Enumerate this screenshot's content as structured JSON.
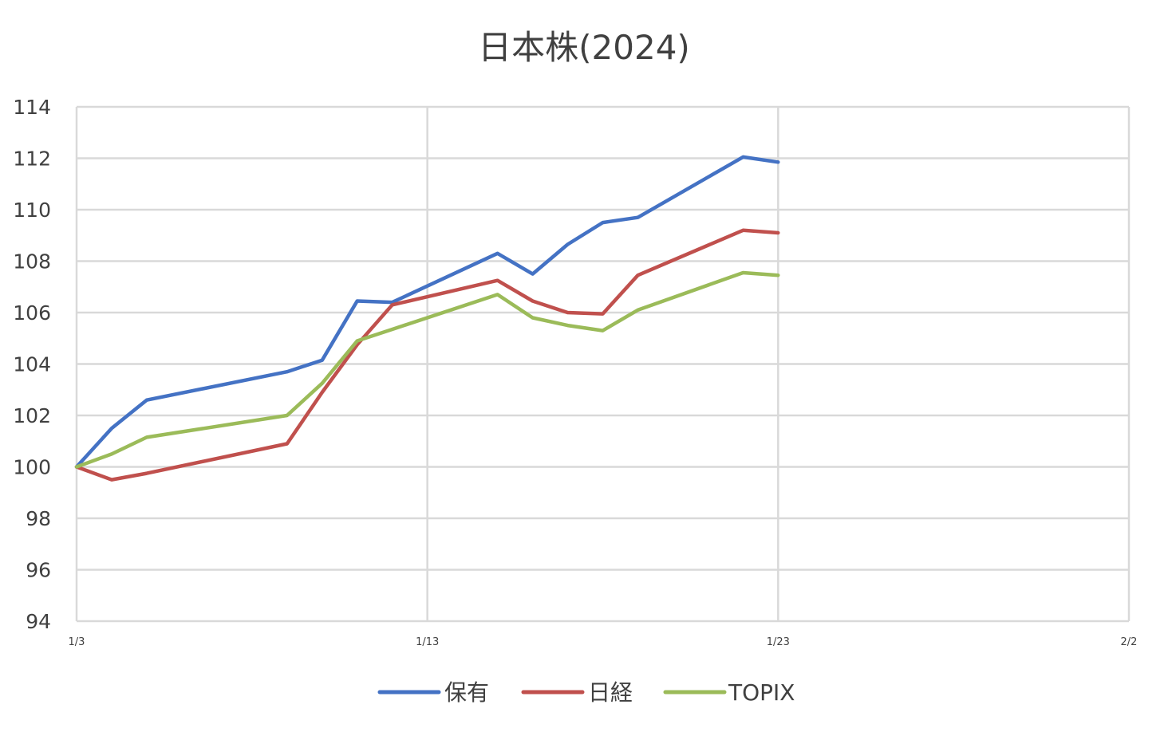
{
  "chart_data": {
    "type": "line",
    "title": "日本株(2024)",
    "xlabel": "",
    "ylabel": "",
    "ylim": [
      94,
      114
    ],
    "yticks": [
      "94",
      "96",
      "98",
      "100",
      "102",
      "104",
      "106",
      "108",
      "110",
      "112",
      "114"
    ],
    "xlim": [
      "2024-01-03",
      "2024-02-02"
    ],
    "xticks": [
      {
        "date": "2024-01-03",
        "label": "1/3"
      },
      {
        "date": "2024-01-13",
        "label": "1/13"
      },
      {
        "date": "2024-01-23",
        "label": "1/23"
      },
      {
        "date": "2024-02-02",
        "label": "2/2"
      }
    ],
    "grid": true,
    "legend_position": "bottom",
    "x": [
      "2024-01-03",
      "2024-01-04",
      "2024-01-05",
      "2024-01-09",
      "2024-01-10",
      "2024-01-11",
      "2024-01-12",
      "2024-01-15",
      "2024-01-16",
      "2024-01-17",
      "2024-01-18",
      "2024-01-19",
      "2024-01-22",
      "2024-01-23"
    ],
    "series": [
      {
        "name": "保有",
        "color": "#4472c4",
        "values": [
          100.0,
          101.5,
          102.6,
          103.7,
          104.15,
          106.45,
          106.4,
          108.3,
          107.5,
          108.65,
          109.5,
          109.7,
          112.05,
          111.85
        ]
      },
      {
        "name": "日経",
        "color": "#c0504d",
        "values": [
          100.0,
          99.5,
          99.75,
          100.9,
          102.9,
          104.75,
          106.3,
          107.25,
          106.45,
          106.0,
          105.95,
          107.45,
          109.2,
          109.1
        ]
      },
      {
        "name": "TOPIX",
        "color": "#9bbb59",
        "values": [
          100.0,
          100.5,
          101.15,
          102.0,
          103.25,
          104.9,
          105.35,
          106.7,
          105.8,
          105.5,
          105.3,
          106.1,
          107.55,
          107.45
        ]
      }
    ]
  }
}
